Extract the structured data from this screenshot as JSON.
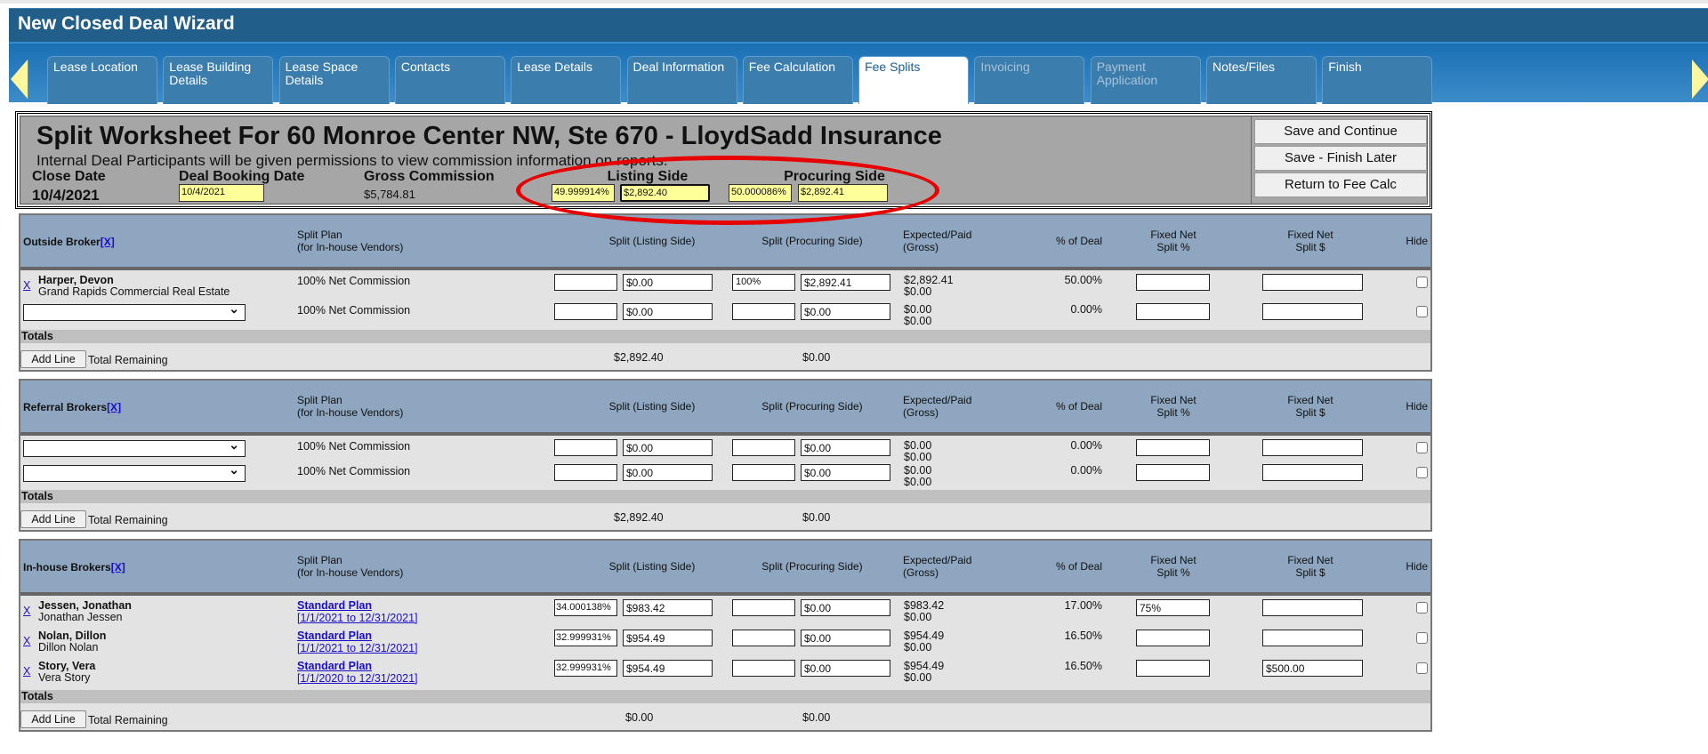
{
  "header": {
    "title": "New Closed Deal Wizard"
  },
  "tabs": [
    {
      "label": "Lease Location",
      "state": "normal"
    },
    {
      "label": "Lease Building Details",
      "state": "normal"
    },
    {
      "label": "Lease Space Details",
      "state": "normal"
    },
    {
      "label": "Contacts",
      "state": "normal"
    },
    {
      "label": "Lease Details",
      "state": "normal"
    },
    {
      "label": "Deal Information",
      "state": "normal"
    },
    {
      "label": "Fee Calculation",
      "state": "normal"
    },
    {
      "label": "Fee Splits",
      "state": "active"
    },
    {
      "label": "Invoicing",
      "state": "disabled"
    },
    {
      "label": "Payment Application",
      "state": "disabled"
    },
    {
      "label": "Notes/Files",
      "state": "normal"
    },
    {
      "label": "Finish",
      "state": "normal"
    }
  ],
  "worksheet": {
    "title": "Split Worksheet For 60 Monroe Center NW, Ste 670 - LloydSadd Insurance",
    "subtitle": "Internal Deal Participants will be given permissions to view commission information on reports.",
    "close_date_label": "Close Date",
    "close_date": "10/4/2021",
    "booking_date_label": "Deal Booking Date",
    "booking_date": "10/4/2021",
    "gross_label": "Gross Commission",
    "gross": "$5,784.81",
    "listing_label": "Listing Side",
    "listing_pct": "49.999914%",
    "listing_amt": "$2,892.40",
    "procuring_label": "Procuring Side",
    "procuring_pct": "50.000086%",
    "procuring_amt": "$2,892.41",
    "buttons": {
      "save_continue": "Save and Continue",
      "save_later": "Save - Finish Later",
      "return": "Return to Fee Calc"
    },
    "highlight_color": "#e60000"
  },
  "columns": {
    "split_plan": "Split Plan",
    "split_plan_sub": "(for In-house Vendors)",
    "listing": "Split (Listing Side)",
    "procuring": "Split (Procuring Side)",
    "expected": "Expected/Paid",
    "expected_sub": "(Gross)",
    "pct_deal": "% of Deal",
    "fixed_pct_1": "Fixed Net",
    "fixed_pct_2": "Split %",
    "fixed_amt_1": "Fixed Net",
    "fixed_amt_2": "Split $",
    "hide": "Hide"
  },
  "labels": {
    "x": "X",
    "x_bracket": "[X]",
    "totals": "Totals",
    "add_line": "Add Line",
    "total_remaining": "Total Remaining"
  },
  "sections": [
    {
      "title": "Outside Broker",
      "rows": [
        {
          "remove": true,
          "name": "Harper, Devon",
          "sub": "Grand Rapids Commercial Real Estate",
          "plan": "100% Net Commission",
          "listing_pct": "",
          "listing_amt": "$0.00",
          "procuring_pct": "100%",
          "procuring_amt": "$2,892.41",
          "expected": "$2,892.41",
          "paid": "$0.00",
          "pct_deal": "50.00%",
          "fixed_pct": "",
          "fixed_amt": ""
        },
        {
          "dropdown": true,
          "plan": "100% Net Commission",
          "listing_pct": "",
          "listing_amt": "$0.00",
          "procuring_pct": "",
          "procuring_amt": "$0.00",
          "expected": "$0.00",
          "paid": "$0.00",
          "pct_deal": "0.00%",
          "fixed_pct": "",
          "fixed_amt": ""
        }
      ],
      "remaining_listing": "$2,892.40",
      "remaining_procuring": "$0.00"
    },
    {
      "title": "Referral Brokers",
      "rows": [
        {
          "dropdown": true,
          "plan": "100% Net Commission",
          "listing_pct": "",
          "listing_amt": "$0.00",
          "procuring_pct": "",
          "procuring_amt": "$0.00",
          "expected": "$0.00",
          "paid": "$0.00",
          "pct_deal": "0.00%",
          "fixed_pct": "",
          "fixed_amt": ""
        },
        {
          "dropdown": true,
          "plan": "100% Net Commission",
          "listing_pct": "",
          "listing_amt": "$0.00",
          "procuring_pct": "",
          "procuring_amt": "$0.00",
          "expected": "$0.00",
          "paid": "$0.00",
          "pct_deal": "0.00%",
          "fixed_pct": "",
          "fixed_amt": ""
        }
      ],
      "remaining_listing": "$2,892.40",
      "remaining_procuring": "$0.00"
    },
    {
      "title": "In-house Brokers",
      "rows": [
        {
          "remove": true,
          "name": "Jessen, Jonathan",
          "sub": "Jonathan Jessen",
          "plan_link": "Standard Plan",
          "plan_dates": "[1/1/2021 to 12/31/2021]",
          "listing_pct": "34.000138%",
          "listing_amt": "$983.42",
          "procuring_pct": "",
          "procuring_amt": "$0.00",
          "expected": "$983.42",
          "paid": "$0.00",
          "pct_deal": "17.00%",
          "fixed_pct": "75%",
          "fixed_amt": ""
        },
        {
          "remove": true,
          "name": "Nolan, Dillon",
          "sub": "Dillon Nolan",
          "plan_link": "Standard Plan",
          "plan_dates": "[1/1/2021 to 12/31/2021]",
          "listing_pct": "32.999931%",
          "listing_amt": "$954.49",
          "procuring_pct": "",
          "procuring_amt": "$0.00",
          "expected": "$954.49",
          "paid": "$0.00",
          "pct_deal": "16.50%",
          "fixed_pct": "",
          "fixed_amt": ""
        },
        {
          "remove": true,
          "name": "Story, Vera",
          "sub": "Vera Story",
          "plan_link": "Standard Plan",
          "plan_dates": "[1/1/2020 to 12/31/2021]",
          "listing_pct": "32.999931%",
          "listing_amt": "$954.49",
          "procuring_pct": "",
          "procuring_amt": "$0.00",
          "expected": "$954.49",
          "paid": "$0.00",
          "pct_deal": "16.50%",
          "fixed_pct": "",
          "fixed_amt": "$500.00"
        }
      ],
      "remaining_listing": "$0.00",
      "remaining_procuring": "$0.00"
    }
  ]
}
